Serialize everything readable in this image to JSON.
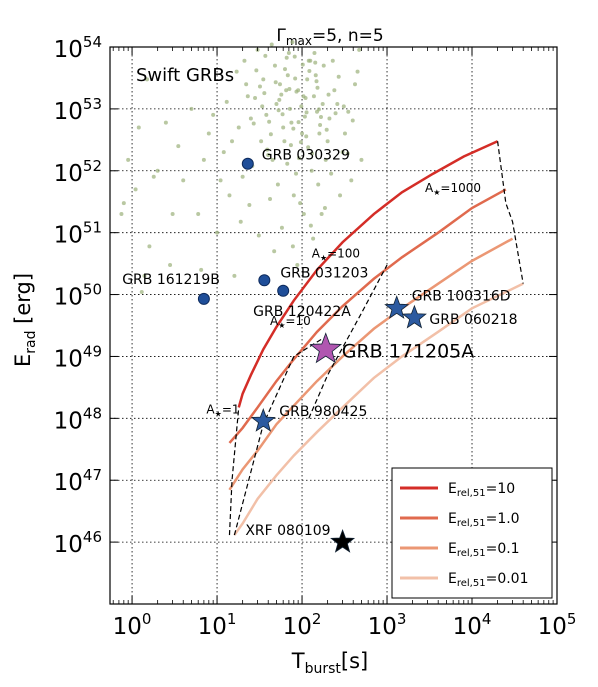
{
  "chart_data": {
    "type": "scatter",
    "title": {
      "pre": "Γ",
      "sub": "max",
      "post": "=5, n=5"
    },
    "xlabel": {
      "main": "T",
      "sub": "burst",
      "unit": "[s]"
    },
    "ylabel": {
      "main": "E",
      "sub": "rad",
      "unit": " [erg]"
    },
    "x_scale": "log",
    "y_scale": "log",
    "xlim": [
      0.55,
      100000
    ],
    "ylim": [
      1e+45,
      1e+54
    ],
    "x_ticks": [
      {
        "value": 1,
        "base": "10",
        "exp": "0"
      },
      {
        "value": 10,
        "base": "10",
        "exp": "1"
      },
      {
        "value": 100,
        "base": "10",
        "exp": "2"
      },
      {
        "value": 1000,
        "base": "10",
        "exp": "3"
      },
      {
        "value": 10000,
        "base": "10",
        "exp": "4"
      },
      {
        "value": 100000,
        "base": "10",
        "exp": "5"
      }
    ],
    "y_ticks": [
      {
        "value": 1e+46,
        "base": "10",
        "exp": "46"
      },
      {
        "value": 1e+47,
        "base": "10",
        "exp": "47"
      },
      {
        "value": 1e+48,
        "base": "10",
        "exp": "48"
      },
      {
        "value": 1e+49,
        "base": "10",
        "exp": "49"
      },
      {
        "value": 1e+50,
        "base": "10",
        "exp": "50"
      },
      {
        "value": 1e+51,
        "base": "10",
        "exp": "51"
      },
      {
        "value": 1e+52,
        "base": "10",
        "exp": "52"
      },
      {
        "value": 1e+53,
        "base": "10",
        "exp": "53"
      },
      {
        "value": 1e+54,
        "base": "10",
        "exp": "54"
      }
    ],
    "grid": true,
    "annotation_box": "Swift GRBs",
    "swift_color": "#9bb07a",
    "swift_grbs": [
      [
        50,
        1.2e+53
      ],
      [
        70,
        8e+53
      ],
      [
        35,
        3e+53
      ],
      [
        120,
        6e+53
      ],
      [
        90,
        2e+53
      ],
      [
        150,
        9e+52
      ],
      [
        60,
        5e+52
      ],
      [
        25,
        7e+52
      ],
      [
        200,
        3e+52
      ],
      [
        45,
        1.5e+52
      ],
      [
        80,
        4e+51
      ],
      [
        300,
        2e+52
      ],
      [
        15,
        3e+52
      ],
      [
        110,
        1.5e+53
      ],
      [
        30,
        9e+53
      ],
      [
        55,
        2.5e+53
      ],
      [
        180,
        5e+53
      ],
      [
        260,
        1.2e+53
      ],
      [
        75,
        6e+52
      ],
      [
        40,
        1.8e+52
      ],
      [
        20,
        8e+51
      ],
      [
        130,
        1e+52
      ],
      [
        95,
        3e+51
      ],
      [
        65,
        2e+53
      ],
      [
        140,
        8e+53
      ],
      [
        48,
        5e+53
      ],
      [
        210,
        7e+52
      ],
      [
        33,
        3e+52
      ],
      [
        85,
        9e+51
      ],
      [
        160,
        4e+52
      ],
      [
        115,
        3e+53
      ],
      [
        72,
        1e+53
      ],
      [
        28,
        1.5e+53
      ],
      [
        240,
        2e+53
      ],
      [
        18,
        5e+52
      ],
      [
        52,
        6e+51
      ],
      [
        100,
        4e+52
      ],
      [
        190,
        1.5e+52
      ],
      [
        38,
        8e+52
      ],
      [
        125,
        6e+53
      ],
      [
        62,
        3e+52
      ],
      [
        12,
        2e+52
      ],
      [
        8,
        4e+52
      ],
      [
        5,
        1e+53
      ],
      [
        3.5,
        2.5e+52
      ],
      [
        2.5,
        6e+52
      ],
      [
        1.5,
        3e+53
      ],
      [
        1.2,
        5e+52
      ],
      [
        2,
        1e+52
      ],
      [
        4,
        7e+51
      ],
      [
        6,
        2e+51
      ],
      [
        10,
        1e+51
      ],
      [
        14,
        4e+51
      ],
      [
        3,
        2e+51
      ],
      [
        1.8,
        8e+51
      ],
      [
        0.9,
        1.5e+52
      ],
      [
        0.8,
        3e+51
      ],
      [
        9,
        8e+52
      ],
      [
        22,
        2.5e+53
      ],
      [
        17,
        4e+53
      ],
      [
        26,
        1.2e+52
      ],
      [
        42,
        3.5e+51
      ],
      [
        58,
        1.2e+51
      ],
      [
        78,
        6e+50
      ],
      [
        105,
        2e+51
      ],
      [
        155,
        6e+51
      ],
      [
        220,
        9e+51
      ],
      [
        320,
        4e+52
      ],
      [
        420,
        2.5e+53
      ],
      [
        380,
        7e+51
      ],
      [
        500,
        1.5e+52
      ],
      [
        280,
        4e+51
      ],
      [
        170,
        2e+51
      ],
      [
        135,
        8e+50
      ],
      [
        88,
        3e+50
      ],
      [
        47,
        5e+50
      ],
      [
        31,
        9e+50
      ],
      [
        19,
        1.5e+51
      ],
      [
        11,
        7e+51
      ],
      [
        7,
        1.5e+52
      ],
      [
        13,
        1.3e+53
      ],
      [
        21,
        6e+53
      ],
      [
        36,
        1.8e+53
      ],
      [
        44,
        1.1e+54
      ],
      [
        68,
        3.5e+53
      ],
      [
        82,
        7e+53
      ],
      [
        98,
        1.1e+53
      ],
      [
        145,
        3.5e+53
      ],
      [
        175,
        1.2e+53
      ],
      [
        230,
        6e+53
      ],
      [
        350,
        9e+52
      ],
      [
        450,
        4e+53
      ],
      [
        0.75,
        2e+51
      ],
      [
        1.1,
        5e+51
      ],
      [
        1.4,
        2e+50
      ],
      [
        1.3,
        1.1e+50
      ],
      [
        1.6,
        6e+50
      ],
      [
        2.8,
        3e+50
      ],
      [
        6.5,
        2.5e+50
      ],
      [
        16,
        2e+50
      ],
      [
        24,
        2.8e+51
      ],
      [
        39,
        2.2e+52
      ],
      [
        57,
        1.7e+53
      ],
      [
        63,
        4.4e+53
      ],
      [
        74,
        2.6e+52
      ],
      [
        92,
        1.6e+52
      ],
      [
        108,
        7.5e+52
      ],
      [
        118,
        2.4e+52
      ],
      [
        127,
        1.3e+51
      ],
      [
        148,
        2.8e+53
      ],
      [
        163,
        5.5e+52
      ],
      [
        186,
        2.5e+51
      ],
      [
        205,
        1.7e+53
      ],
      [
        248,
        8.5e+52
      ],
      [
        270,
        3.3e+53
      ],
      [
        310,
        1.1e+53
      ],
      [
        345,
        1.9e+52
      ],
      [
        395,
        6.5e+52
      ],
      [
        470,
        9e+53
      ],
      [
        29,
        4.2e+53
      ],
      [
        34,
        1.1e+53
      ],
      [
        41,
        6.2e+52
      ],
      [
        53,
        9.5e+52
      ],
      [
        67,
        1.3e+52
      ],
      [
        79,
        4.8e+52
      ],
      [
        86,
        1.9e+53
      ],
      [
        102,
        5.2e+53
      ],
      [
        112,
        3.6e+52
      ],
      [
        138,
        1.6e+53
      ],
      [
        158,
        9.8e+52
      ],
      [
        195,
        4.6e+52
      ],
      [
        23,
        1.6e+53
      ],
      [
        27,
        5.8e+52
      ],
      [
        32,
        2.3e+53
      ],
      [
        37,
        7.2e+53
      ],
      [
        43,
        3.9e+52
      ],
      [
        49,
        2.7e+53
      ],
      [
        54,
        1.4e+53
      ],
      [
        59,
        8.2e+52
      ],
      [
        66,
        6.7e+53
      ],
      [
        71,
        2.1e+53
      ],
      [
        77,
        1.2e+54
      ],
      [
        83,
        3.1e+53
      ],
      [
        91,
        6.1e+52
      ],
      [
        97,
        2.9e+52
      ],
      [
        104,
        1.6e+53
      ],
      [
        113,
        8.8e+52
      ],
      [
        122,
        4.1e+53
      ],
      [
        131,
        1.9e+52
      ],
      [
        143,
        5.6e+53
      ],
      [
        152,
        2.2e+53
      ],
      [
        167,
        7.4e+52
      ]
    ],
    "grbs": [
      {
        "name": "GRB 030329",
        "x": 23,
        "y": 1.3e+52
      },
      {
        "name": "GRB 031203",
        "x": 36,
        "y": 1.7e+50
      },
      {
        "name": "GRB 120422A",
        "x": 60,
        "y": 1.15e+50
      },
      {
        "name": "GRB 161219B",
        "x": 7,
        "y": 8.5e+49
      }
    ],
    "stars": [
      {
        "name": "GRB 100316D",
        "x": 1300,
        "y": 6e+49,
        "color": "#2c5aa0"
      },
      {
        "name": "GRB 060218",
        "x": 2100,
        "y": 4.2e+49,
        "color": "#2c5aa0"
      },
      {
        "name": "GRB 980425",
        "x": 35,
        "y": 9e+47,
        "color": "#2c5aa0"
      },
      {
        "name": "GRB 171205A",
        "x": 190,
        "y": 1.3e+49,
        "color": "#b056b0"
      },
      {
        "name": "XRF 080109",
        "x": 300,
        "y": 1e+46,
        "color": "#000000"
      }
    ],
    "series": [
      {
        "name": "10",
        "color": "#d42d27",
        "x": [
          18,
          20,
          25,
          35,
          50,
          80,
          150,
          300,
          700,
          1500,
          3500,
          8000,
          20000
        ],
        "y": [
          1.5e+48,
          2.5e+48,
          5e+48,
          1.3e+49,
          3e+49,
          8e+49,
          2.5e+50,
          7e+50,
          2e+51,
          4.5e+51,
          9e+51,
          1.7e+52,
          3e+52
        ]
      },
      {
        "name": "1.0",
        "color": "#e06a4e",
        "x": [
          14,
          20,
          30,
          50,
          80,
          150,
          300,
          700,
          1500,
          4000,
          10000,
          25000
        ],
        "y": [
          4e+47,
          7e+47,
          1.5e+48,
          4e+48,
          9e+48,
          2.5e+49,
          6.5e+49,
          1.8e+50,
          4e+50,
          1e+51,
          2.5e+51,
          5e+51
        ]
      },
      {
        "name": "0.1",
        "color": "#eb9774",
        "x": [
          14,
          20,
          30,
          50,
          80,
          150,
          300,
          700,
          1500,
          4000,
          10000,
          30000
        ],
        "y": [
          7e+46,
          1.5e+47,
          3e+47,
          8e+47,
          1.6e+48,
          4e+48,
          1e+49,
          2.8e+49,
          6e+49,
          1.5e+50,
          3.5e+50,
          8e+50
        ]
      },
      {
        "name": "0.01",
        "color": "#f2c0a8",
        "x": [
          16,
          20,
          30,
          50,
          80,
          150,
          300,
          700,
          1500,
          4000,
          10000,
          40000
        ],
        "y": [
          1.3e+46,
          2e+46,
          5e+46,
          1.2e+47,
          2.5e+47,
          6e+47,
          1.5e+48,
          4.5e+48,
          1e+49,
          2.5e+49,
          6e+49,
          1.5e+50
        ]
      }
    ],
    "dashed_curves": [
      {
        "name": "1",
        "x": [
          14,
          15,
          18
        ],
        "y": [
          1.3e+46,
          1e+47,
          1.5e+48
        ]
      },
      {
        "name": "10",
        "x": [
          16,
          35,
          80,
          180
        ],
        "y": [
          1.3e+46,
          8e+47,
          1e+49,
          2e+49
        ]
      },
      {
        "name": "100",
        "x": [
          120,
          200,
          500,
          1000
        ],
        "y": [
          1e+48,
          5e+48,
          5e+49,
          3e+50
        ]
      },
      {
        "name": "1000",
        "x": [
          20000,
          25000,
          30000,
          40000
        ],
        "y": [
          3e+52,
          3e+51,
          1.5e+51,
          1.5e+50
        ]
      }
    ],
    "a_star_labels": [
      {
        "sym": "A",
        "sub": "★",
        "text": "=1",
        "x": 7.5,
        "y": 1.2e+48
      },
      {
        "sym": "A",
        "sub": "★",
        "text": "=10",
        "x": 42,
        "y": 3.2e+49
      },
      {
        "sym": "A",
        "sub": "★",
        "text": "=100",
        "x": 130,
        "y": 4e+50
      },
      {
        "sym": "A",
        "sub": "★",
        "text": "=1000",
        "x": 2800,
        "y": 4.5e+51
      }
    ],
    "legend": {
      "position": "lower-right",
      "items": [
        {
          "sym": "E",
          "sub": "rel,51",
          "value": "=10",
          "color": "#d42d27"
        },
        {
          "sym": "E",
          "sub": "rel,51",
          "value": "=1.0",
          "color": "#e06a4e"
        },
        {
          "sym": "E",
          "sub": "rel,51",
          "value": "=0.1",
          "color": "#eb9774"
        },
        {
          "sym": "E",
          "sub": "rel,51",
          "value": "=0.01",
          "color": "#f2c0a8"
        }
      ]
    }
  }
}
